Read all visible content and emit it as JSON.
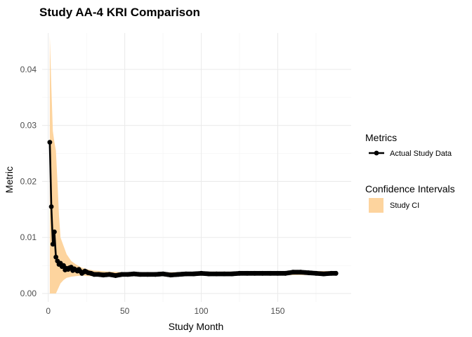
{
  "chart_data": {
    "type": "line",
    "title": "Study AA-4 KRI Comparison",
    "xlabel": "Study Month",
    "ylabel": "Metric",
    "xlim": [
      -4,
      198
    ],
    "ylim": [
      -0.0015,
      0.0465
    ],
    "x_ticks": [
      0,
      50,
      100,
      150
    ],
    "y_ticks": [
      0.0,
      0.01,
      0.02,
      0.03,
      0.04
    ],
    "y_tick_labels": [
      "0.00",
      "0.01",
      "0.02",
      "0.03",
      "0.04"
    ],
    "grid": true,
    "legend_placement": "right",
    "colors": {
      "line": "#000000",
      "ribbon": "#fdd49e"
    },
    "legend": [
      {
        "title": "Metrics",
        "label": "Actual Study Data",
        "kind": "line-point"
      },
      {
        "title": "Confidence Intervals",
        "label": "Study CI",
        "kind": "fill"
      }
    ],
    "series": [
      {
        "name": "Actual Study Data",
        "x": [
          1,
          2,
          3,
          4,
          5,
          6,
          7,
          8,
          9,
          10,
          11,
          12,
          13,
          14,
          15,
          16,
          17,
          18,
          19,
          20,
          22,
          24,
          26,
          28,
          30,
          33,
          36,
          40,
          44,
          48,
          52,
          56,
          60,
          65,
          70,
          75,
          80,
          85,
          90,
          95,
          100,
          105,
          110,
          115,
          120,
          125,
          130,
          135,
          140,
          145,
          150,
          155,
          160,
          165,
          170,
          175,
          180,
          185,
          188
        ],
        "y": [
          0.027,
          0.0155,
          0.0088,
          0.011,
          0.0065,
          0.0058,
          0.0052,
          0.0054,
          0.0048,
          0.005,
          0.0042,
          0.0045,
          0.0043,
          0.0046,
          0.0047,
          0.0041,
          0.0044,
          0.0042,
          0.004,
          0.0043,
          0.0036,
          0.004,
          0.0037,
          0.0036,
          0.0034,
          0.0034,
          0.0033,
          0.0034,
          0.0032,
          0.0034,
          0.0034,
          0.0035,
          0.0034,
          0.0034,
          0.0034,
          0.0035,
          0.0033,
          0.0034,
          0.0035,
          0.0035,
          0.0036,
          0.0035,
          0.0035,
          0.0035,
          0.0035,
          0.0036,
          0.0036,
          0.0036,
          0.0036,
          0.0036,
          0.0036,
          0.0036,
          0.0038,
          0.0038,
          0.0037,
          0.0036,
          0.0035,
          0.0036,
          0.0036
        ]
      },
      {
        "name": "Study CI",
        "x": [
          1,
          2,
          3,
          4,
          5,
          6,
          7,
          8,
          10,
          12,
          15,
          18,
          22,
          26,
          30,
          35,
          40,
          50,
          60,
          80,
          100,
          120,
          140,
          160,
          188
        ],
        "lower": [
          0.0,
          0.0,
          0.0,
          0.0,
          0.0,
          0.0006,
          0.0012,
          0.0018,
          0.0024,
          0.0028,
          0.003,
          0.0031,
          0.0032,
          0.0031,
          0.0031,
          0.0031,
          0.0031,
          0.0031,
          0.0031,
          0.0031,
          0.0032,
          0.0032,
          0.0032,
          0.0033,
          0.0033
        ],
        "upper": [
          0.046,
          0.037,
          0.029,
          0.027,
          0.0255,
          0.02,
          0.014,
          0.01,
          0.0085,
          0.007,
          0.0058,
          0.0052,
          0.0046,
          0.0043,
          0.0041,
          0.004,
          0.0039,
          0.0038,
          0.0038,
          0.0038,
          0.0039,
          0.0039,
          0.0039,
          0.004,
          0.004
        ]
      }
    ]
  }
}
